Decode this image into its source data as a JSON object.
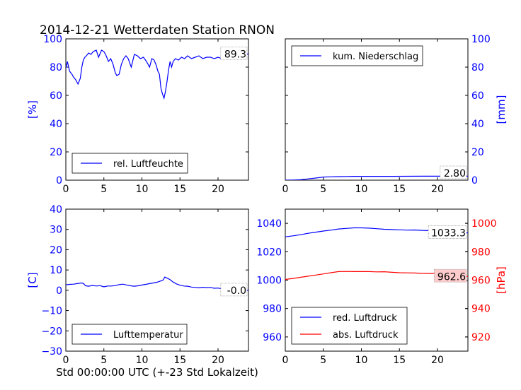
{
  "title": "2014-12-21 Wetterdaten Station RNON",
  "xlabel": "Std 00:00:00 UTC (+-23 Std Lokalzeit)",
  "colors": {
    "blue": "#0000ff",
    "red": "#ff0000",
    "axis": "#000000",
    "redbox": "#ffcccc"
  },
  "chart_data": [
    {
      "type": "line",
      "panel": "top-left",
      "ylabel": "[%]",
      "ylabel_side": "left",
      "xlim": [
        0,
        24
      ],
      "ylim": [
        0,
        100
      ],
      "xticks": [
        0,
        5,
        10,
        15,
        20
      ],
      "xtick_labels": [
        "0",
        "5",
        "10",
        "15",
        "20"
      ],
      "yticks": [
        0,
        20,
        40,
        60,
        80,
        100
      ],
      "ytick_labels": [
        "0",
        "20",
        "40",
        "60",
        "80",
        "100"
      ],
      "legend_placement": "bottom-left",
      "value_box": "89.3",
      "series": [
        {
          "name": "rel. Luftfeuchte",
          "color": "#0000ff",
          "x": [
            0,
            0.2,
            0.5,
            0.8,
            1.0,
            1.3,
            1.6,
            1.9,
            2.1,
            2.3,
            2.5,
            2.7,
            3.0,
            3.3,
            3.6,
            4.0,
            4.3,
            4.7,
            5.0,
            5.3,
            5.6,
            5.9,
            6.2,
            6.5,
            6.7,
            7.0,
            7.3,
            7.6,
            7.9,
            8.2,
            8.6,
            9.0,
            9.4,
            9.8,
            10.2,
            10.6,
            11.0,
            11.3,
            11.6,
            11.9,
            12.1,
            12.3,
            12.5,
            12.7,
            12.9,
            13.1,
            13.3,
            13.5,
            13.7,
            13.9,
            14.1,
            14.4,
            14.8,
            15.2,
            15.6,
            16.0,
            16.5,
            17.0,
            17.5,
            18.0,
            18.5,
            19.0,
            19.5,
            20.0,
            20.5,
            21.0,
            21.5,
            22.0,
            22.5,
            23.0,
            23.5,
            24.0
          ],
          "y": [
            79,
            84,
            77,
            75,
            73,
            71,
            68,
            72,
            80,
            85,
            87,
            88,
            90,
            89,
            91,
            92,
            87,
            92,
            91,
            88,
            84,
            86,
            82,
            76,
            74,
            75,
            82,
            86,
            88,
            86,
            80,
            89,
            88,
            86,
            87,
            84,
            80,
            86,
            85,
            81,
            77,
            75,
            65,
            61,
            58,
            63,
            70,
            78,
            84,
            80,
            84,
            86,
            85,
            87,
            86,
            88,
            86,
            87,
            88,
            86,
            87,
            87,
            86,
            87,
            86,
            88,
            87,
            88,
            89,
            89,
            89,
            89.3
          ]
        }
      ]
    },
    {
      "type": "line",
      "panel": "top-right",
      "ylabel": "[mm]",
      "ylabel_side": "right",
      "xlim": [
        0,
        24
      ],
      "ylim": [
        0,
        100
      ],
      "xticks": [
        0,
        5,
        10,
        15,
        20
      ],
      "xtick_labels": [
        "0",
        "5",
        "10",
        "15",
        "20"
      ],
      "yticks": [
        0,
        20,
        40,
        60,
        80,
        100
      ],
      "ytick_labels": [
        "0",
        "20",
        "40",
        "60",
        "80",
        "100"
      ],
      "legend_placement": "top-left",
      "value_box": "2.80",
      "series": [
        {
          "name": "kum. Niederschlag",
          "color": "#0000ff",
          "x": [
            0,
            1,
            2,
            3,
            4,
            5,
            6,
            7,
            8,
            9,
            10,
            12,
            14,
            16,
            18,
            20,
            22,
            24
          ],
          "y": [
            0,
            0.1,
            0.3,
            0.9,
            1.5,
            2.2,
            2.4,
            2.5,
            2.6,
            2.7,
            2.7,
            2.7,
            2.7,
            2.75,
            2.78,
            2.8,
            2.8,
            2.8
          ]
        }
      ]
    },
    {
      "type": "line",
      "panel": "bottom-left",
      "ylabel": "[C]",
      "ylabel_side": "left",
      "xlim": [
        0,
        24
      ],
      "ylim": [
        -30,
        40
      ],
      "xticks": [
        0,
        5,
        10,
        15,
        20
      ],
      "xtick_labels": [
        "0",
        "5",
        "10",
        "15",
        "20"
      ],
      "yticks": [
        -30,
        -20,
        -10,
        0,
        10,
        20,
        30,
        40
      ],
      "ytick_labels": [
        "−30",
        "−20",
        "−10",
        "0",
        "10",
        "20",
        "30",
        "40"
      ],
      "legend_placement": "bottom-left",
      "value_box": "-0.0",
      "series": [
        {
          "name": "Lufttemperatur",
          "color": "#0000ff",
          "x": [
            0,
            0.5,
            1.0,
            1.5,
            2.0,
            2.3,
            2.6,
            3.0,
            3.5,
            4.0,
            4.5,
            5.0,
            5.5,
            6.0,
            6.5,
            7.0,
            7.5,
            8.0,
            8.5,
            9.0,
            9.5,
            10.0,
            10.5,
            11.0,
            11.5,
            12.0,
            12.5,
            12.8,
            13.0,
            13.3,
            13.7,
            14.0,
            14.5,
            15.0,
            15.5,
            16.0,
            16.5,
            17.0,
            17.5,
            18.0,
            18.5,
            19.0,
            19.5,
            20.0,
            20.5,
            21.0,
            21.5,
            22.0,
            22.5,
            23.0,
            23.5,
            24.0
          ],
          "y": [
            2.7,
            2.9,
            3.0,
            3.3,
            3.6,
            3.4,
            2.2,
            2.0,
            2.4,
            2.1,
            2.3,
            1.7,
            2.1,
            2.1,
            2.3,
            2.8,
            3.0,
            2.6,
            2.2,
            2.0,
            2.2,
            2.6,
            2.9,
            3.3,
            3.6,
            4.0,
            4.6,
            5.1,
            6.5,
            6.0,
            5.2,
            4.3,
            3.2,
            2.5,
            2.1,
            2.0,
            1.6,
            1.4,
            1.2,
            1.5,
            1.3,
            1.4,
            1.0,
            1.1,
            0.7,
            0.6,
            0.5,
            0.3,
            0.2,
            0.1,
            0.0,
            0.0
          ]
        }
      ]
    },
    {
      "type": "line",
      "panel": "bottom-right",
      "ylabel": "[hPa]",
      "ylabel_side": "right",
      "xlim": [
        0,
        24
      ],
      "ylim": [
        950,
        1050
      ],
      "y2lim": [
        910,
        1010
      ],
      "xticks": [
        0,
        5,
        10,
        15,
        20
      ],
      "xtick_labels": [
        "0",
        "5",
        "10",
        "15",
        "20"
      ],
      "yticks": [
        960,
        980,
        1000,
        1020,
        1040
      ],
      "ytick_labels": [
        "960",
        "980",
        "1000",
        "1020",
        "1040"
      ],
      "y2ticks": [
        920,
        940,
        960,
        980,
        1000
      ],
      "y2tick_labels": [
        "920",
        "940",
        "960",
        "980",
        "1000"
      ],
      "legend_placement": "bottom-left",
      "value_box": "1033.3",
      "value_box2": "962.6",
      "series": [
        {
          "name": "red. Luftdruck",
          "color": "#0000ff",
          "axis": "left",
          "x": [
            0,
            1,
            2,
            3,
            4,
            5,
            6,
            7,
            8,
            9,
            10,
            11,
            12,
            13,
            14,
            15,
            16,
            17,
            18,
            19,
            20,
            21,
            22,
            23,
            24
          ],
          "y": [
            1030.5,
            1031.2,
            1032.0,
            1033.0,
            1033.8,
            1034.6,
            1035.2,
            1036.0,
            1036.4,
            1036.8,
            1036.8,
            1036.6,
            1036.2,
            1035.8,
            1035.6,
            1035.4,
            1035.2,
            1035.3,
            1035.0,
            1034.9,
            1035.0,
            1034.8,
            1034.7,
            1033.8,
            1033.3
          ]
        },
        {
          "name": "abs. Luftdruck",
          "color": "#ff0000",
          "axis": "right",
          "x": [
            0,
            1,
            2,
            3,
            4,
            5,
            6,
            7,
            8,
            9,
            10,
            11,
            12,
            13,
            14,
            15,
            16,
            17,
            18,
            19,
            20,
            21,
            22,
            23,
            24
          ],
          "y": [
            960.5,
            961.2,
            962.0,
            962.8,
            963.6,
            964.4,
            965.2,
            966.0,
            966.1,
            966.0,
            966.0,
            966.0,
            965.8,
            965.9,
            965.5,
            965.2,
            965.1,
            965.0,
            964.8,
            964.7,
            964.8,
            964.5,
            964.2,
            963.2,
            962.6
          ]
        }
      ]
    }
  ]
}
